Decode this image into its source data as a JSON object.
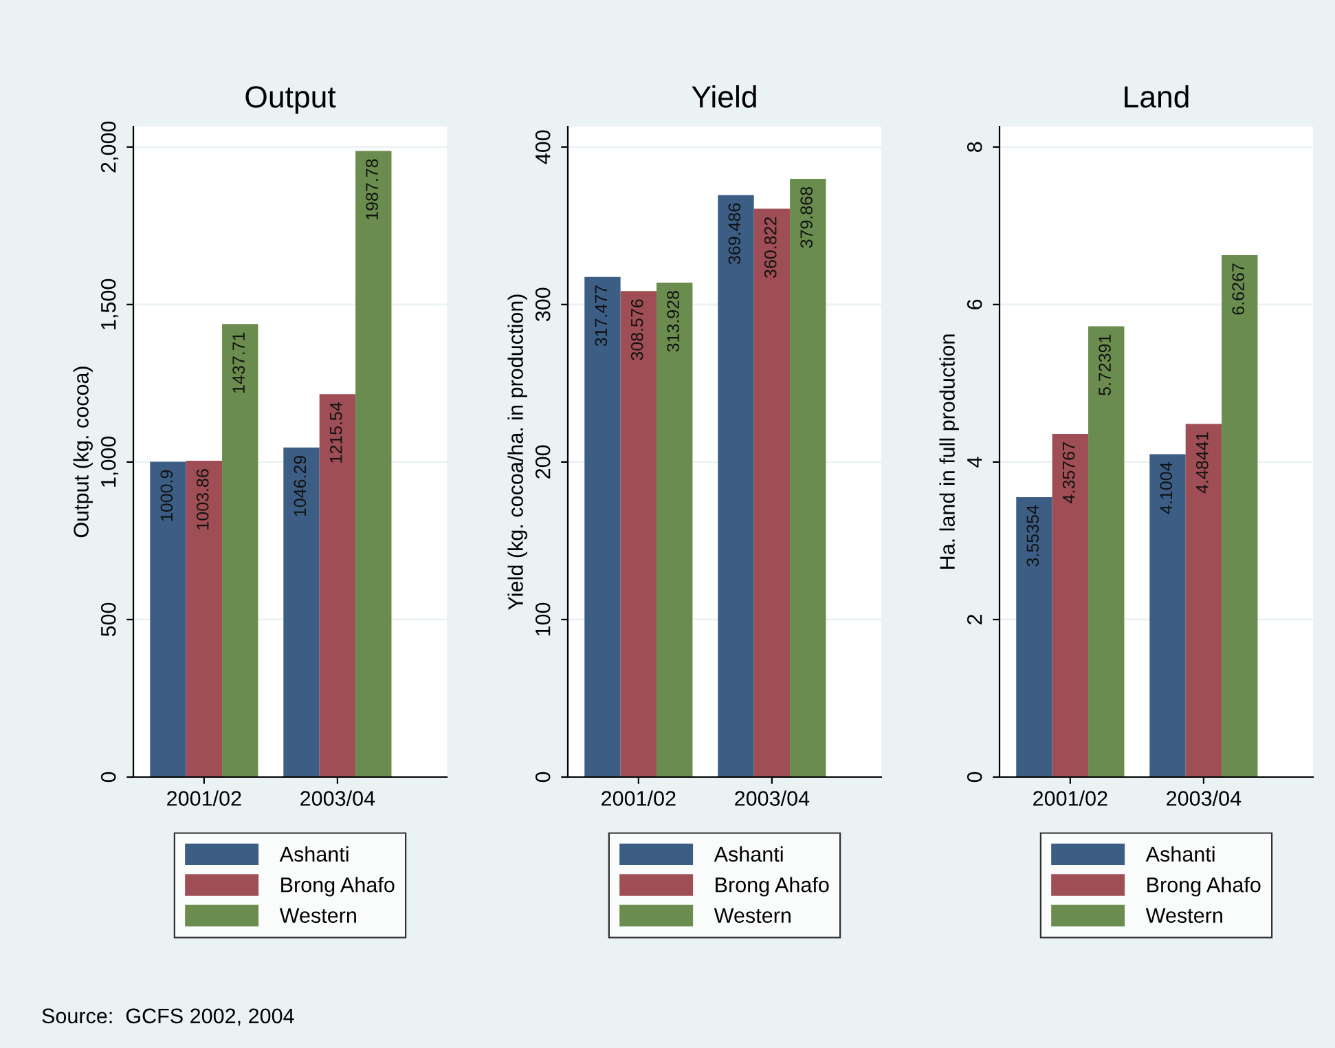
{
  "chart_data": [
    {
      "type": "bar",
      "title": "Output",
      "ylabel": "Output (kg. cocoa)",
      "categories": [
        "2001/02",
        "2003/04"
      ],
      "series": [
        {
          "name": "Ashanti",
          "color": "#3c5e84",
          "values": [
            1000.9,
            1046.29
          ]
        },
        {
          "name": "Brong Ahafo",
          "color": "#a04e55",
          "values": [
            1003.86,
            1215.54
          ]
        },
        {
          "name": "Western",
          "color": "#6a8d4f",
          "values": [
            1437.71,
            1987.78
          ]
        }
      ],
      "ylim": [
        0,
        2065
      ],
      "yticks": [
        0,
        500,
        {
          "value": 1000,
          "label": "1,000"
        },
        {
          "value": 1500,
          "label": "1,500"
        },
        {
          "value": 2000,
          "label": "2,000"
        }
      ],
      "grid": "y",
      "legend": "bottom",
      "data_labels": true,
      "annotations": [
        "Source:  GCFS 2002, 2004"
      ]
    },
    {
      "type": "bar",
      "title": "Yield",
      "ylabel": "Yield (kg. cocoa/ha. in production)",
      "categories": [
        "2001/02",
        "2003/04"
      ],
      "series": [
        {
          "name": "Ashanti",
          "color": "#3c5e84",
          "values": [
            317.477,
            369.486
          ]
        },
        {
          "name": "Brong Ahafo",
          "color": "#a04e55",
          "values": [
            308.576,
            360.822
          ]
        },
        {
          "name": "Western",
          "color": "#6a8d4f",
          "values": [
            313.928,
            379.868
          ]
        }
      ],
      "ylim": [
        0,
        413
      ],
      "yticks": [
        0,
        100,
        200,
        300,
        400
      ],
      "grid": "y",
      "legend": "bottom",
      "data_labels": true
    },
    {
      "type": "bar",
      "title": "Land",
      "ylabel": "Ha. land in full production",
      "categories": [
        "2001/02",
        "2003/04"
      ],
      "series": [
        {
          "name": "Ashanti",
          "color": "#3c5e84",
          "values": [
            3.55354,
            4.1004
          ]
        },
        {
          "name": "Brong Ahafo",
          "color": "#a04e55",
          "values": [
            4.35767,
            4.48441
          ]
        },
        {
          "name": "Western",
          "color": "#6a8d4f",
          "values": [
            5.72391,
            6.6267
          ]
        }
      ],
      "ylim": [
        0,
        8.26
      ],
      "yticks": [
        0,
        2,
        4,
        6,
        8
      ],
      "grid": "y",
      "legend": "bottom",
      "data_labels": true
    }
  ]
}
